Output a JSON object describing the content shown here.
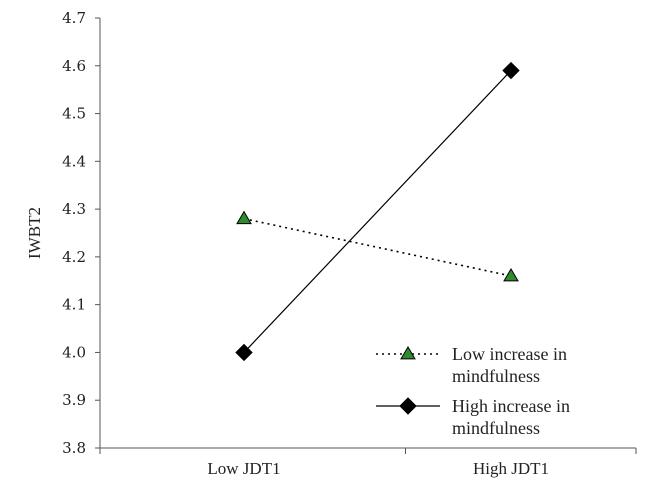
{
  "chart_data": {
    "type": "line",
    "categories": [
      "Low JDT1",
      "High JDT1"
    ],
    "series": [
      {
        "name": "Low increase in mindfulness",
        "values": [
          4.28,
          4.16
        ],
        "line_style": "dotted",
        "marker": "triangle",
        "marker_color": "#2e8b2e",
        "line_color": "#000000"
      },
      {
        "name": "High increase in mindfulness",
        "values": [
          4.0,
          4.59
        ],
        "line_style": "solid",
        "marker": "diamond",
        "marker_color": "#000000",
        "line_color": "#000000"
      }
    ],
    "title": "",
    "xlabel": "",
    "ylabel": "IWBT2",
    "ylim": [
      3.8,
      4.7
    ],
    "yticks": [
      "4.7",
      "4.6",
      "4.5",
      "4.4",
      "4.3",
      "4.2",
      "4.1",
      "4.0",
      "3.9",
      "3.8"
    ],
    "grid": false,
    "legend_placement": "bottom-right",
    "legend": [
      {
        "lines": [
          "Low increase in",
          "mindfulness"
        ]
      },
      {
        "lines": [
          "High increase in",
          "mindfulness"
        ]
      }
    ]
  }
}
